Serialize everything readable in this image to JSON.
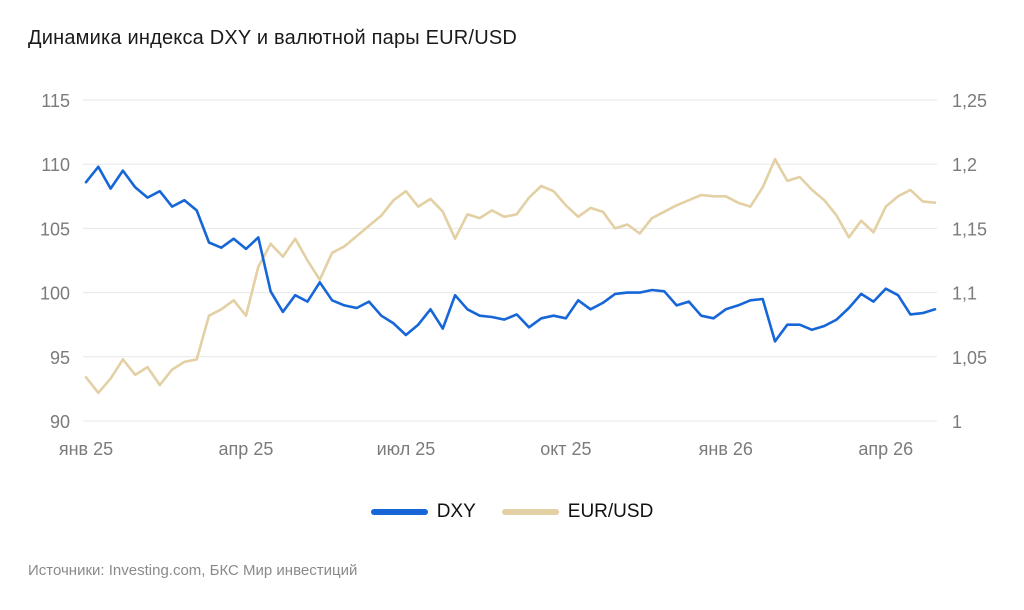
{
  "title": "Динамика индекса DXY и валютной пары EUR/USD",
  "footer": {
    "sources": "Источники: Investing.com, БКС Мир инвестиций"
  },
  "colors": {
    "dxy_line": "#1766d8",
    "eurusd_line": "#e3d0a4",
    "grid": "#e7e7e7",
    "axis_text": "#7b7b7b",
    "title_text": "#1a1a1a",
    "footer_text": "#8a8a8a",
    "background": "#ffffff"
  },
  "chart_data": {
    "type": "line",
    "title": "Динамика индекса DXY и валютной пары EUR/USD",
    "grid": "horizontal",
    "legend_position": "bottom",
    "x_ticks": [
      {
        "label": "янв 25",
        "index": 0
      },
      {
        "label": "апр 25",
        "index": 13
      },
      {
        "label": "июл 25",
        "index": 26
      },
      {
        "label": "окт 25",
        "index": 39
      },
      {
        "label": "янв 26",
        "index": 52
      },
      {
        "label": "апр 26",
        "index": 65
      }
    ],
    "left_axis": {
      "range": [
        90,
        115
      ],
      "ticks": [
        90,
        95,
        100,
        105,
        110,
        115
      ],
      "tick_labels": [
        "90",
        "95",
        "100",
        "105",
        "110",
        "115"
      ]
    },
    "right_axis": {
      "range": [
        1.0,
        1.25
      ],
      "ticks": [
        1.0,
        1.05,
        1.1,
        1.15,
        1.2,
        1.25
      ],
      "tick_labels": [
        "1",
        "1,05",
        "1,1",
        "1,15",
        "1,2",
        "1,25"
      ]
    },
    "series": [
      {
        "name": "DXY",
        "axis": "left",
        "color": "#1766d8",
        "values": [
          108.6,
          109.8,
          108.1,
          109.5,
          108.2,
          107.4,
          107.9,
          106.7,
          107.2,
          106.4,
          103.9,
          103.5,
          104.2,
          103.4,
          104.3,
          100.1,
          98.5,
          99.8,
          99.3,
          100.8,
          99.4,
          99.0,
          98.8,
          99.3,
          98.2,
          97.6,
          96.7,
          97.5,
          98.7,
          97.2,
          99.8,
          98.7,
          98.2,
          98.1,
          97.9,
          98.3,
          97.3,
          98.0,
          98.2,
          98.0,
          99.4,
          98.7,
          99.2,
          99.9,
          100.0,
          100.0,
          100.2,
          100.1,
          99.0,
          99.3,
          98.2,
          98.0,
          98.7,
          99.0,
          99.4,
          99.5,
          96.2,
          97.5,
          97.5,
          97.1,
          97.4,
          97.9,
          98.8,
          99.9,
          99.3,
          100.3,
          99.8,
          98.3,
          98.4,
          98.7
        ]
      },
      {
        "name": "EUR/USD",
        "axis": "right",
        "color": "#e3d0a4",
        "values": [
          1.034,
          1.022,
          1.033,
          1.048,
          1.036,
          1.042,
          1.028,
          1.04,
          1.046,
          1.048,
          1.082,
          1.087,
          1.094,
          1.082,
          1.12,
          1.138,
          1.128,
          1.142,
          1.125,
          1.11,
          1.131,
          1.136,
          1.144,
          1.152,
          1.16,
          1.172,
          1.179,
          1.167,
          1.173,
          1.163,
          1.142,
          1.161,
          1.158,
          1.164,
          1.159,
          1.161,
          1.174,
          1.183,
          1.179,
          1.168,
          1.159,
          1.166,
          1.163,
          1.15,
          1.153,
          1.146,
          1.158,
          1.163,
          1.168,
          1.172,
          1.176,
          1.175,
          1.175,
          1.17,
          1.167,
          1.182,
          1.204,
          1.187,
          1.19,
          1.18,
          1.172,
          1.16,
          1.143,
          1.156,
          1.147,
          1.167,
          1.175,
          1.18,
          1.171,
          1.17
        ]
      }
    ]
  }
}
